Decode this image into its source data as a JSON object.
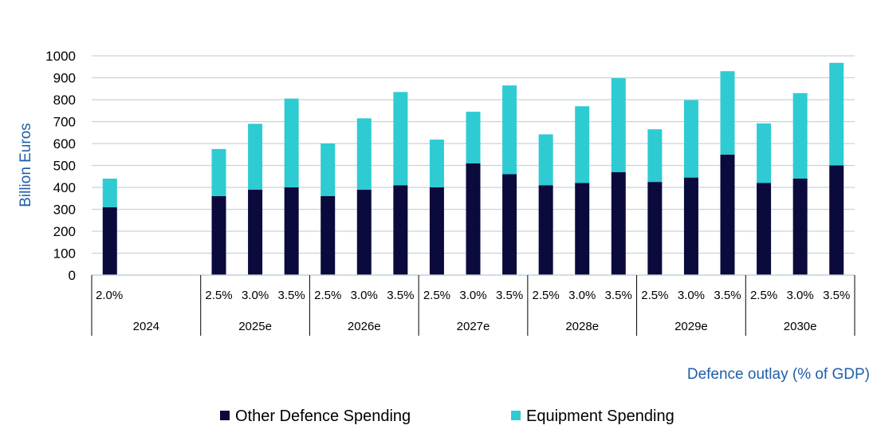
{
  "chart_data": {
    "type": "bar",
    "stacked": true,
    "title": "",
    "xlabel": "Defence outlay (% of GDP)",
    "ylabel": "Billion Euros",
    "ylim": [
      0,
      1000
    ],
    "yticks": [
      0,
      100,
      200,
      300,
      400,
      500,
      600,
      700,
      800,
      900,
      1000
    ],
    "grid": true,
    "legend_position": "bottom",
    "groups": [
      {
        "year": "2024",
        "scenarios": [
          "2.0%"
        ]
      },
      {
        "year": "2025e",
        "scenarios": [
          "2.5%",
          "3.0%",
          "3.5%"
        ]
      },
      {
        "year": "2026e",
        "scenarios": [
          "2.5%",
          "3.0%",
          "3.5%"
        ]
      },
      {
        "year": "2027e",
        "scenarios": [
          "2.5%",
          "3.0%",
          "3.5%"
        ]
      },
      {
        "year": "2028e",
        "scenarios": [
          "2.5%",
          "3.0%",
          "3.5%"
        ]
      },
      {
        "year": "2029e",
        "scenarios": [
          "2.5%",
          "3.0%",
          "3.5%"
        ]
      },
      {
        "year": "2030e",
        "scenarios": [
          "2.5%",
          "3.0%",
          "3.5%"
        ]
      }
    ],
    "series": [
      {
        "name": "Other Defence Spending",
        "color": "#0a0a3c",
        "values": [
          310,
          360,
          390,
          400,
          360,
          390,
          410,
          400,
          510,
          460,
          410,
          420,
          470,
          425,
          445,
          550,
          420,
          440,
          500
        ]
      },
      {
        "name": "Equipment Spending",
        "color": "#2ecbd3",
        "values": [
          130,
          215,
          300,
          405,
          240,
          325,
          425,
          218,
          235,
          405,
          232,
          350,
          428,
          240,
          353,
          380,
          272,
          390,
          468
        ]
      }
    ],
    "colors": {
      "axis_text": "#1f5fa8",
      "gridline": "#c8d3dc",
      "divider": "#000000"
    }
  }
}
